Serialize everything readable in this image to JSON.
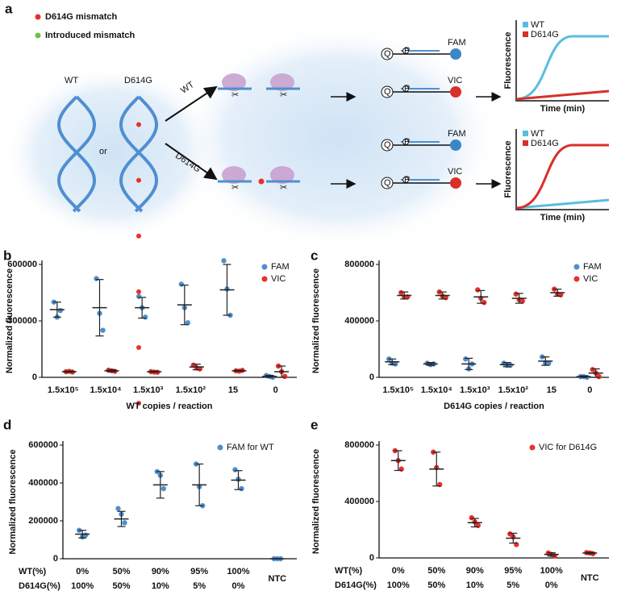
{
  "panel_a": {
    "label": "a",
    "legend": [
      "D614G mismatch",
      "Introduced mismatch"
    ],
    "strands": [
      "WT",
      "or",
      "D614G"
    ],
    "arrows": [
      "WT",
      "D614G"
    ],
    "probes": [
      "FAM",
      "VIC"
    ],
    "quencher": "Q",
    "phosphate": "P",
    "plot_legend": [
      "WT",
      "D614G"
    ],
    "plot_y_label": "Fluorescence",
    "plot_x_label": "Time (min)"
  },
  "chart_data": [
    {
      "type": "dot",
      "panel": "b",
      "y_label": "Normalized fluorescence",
      "x_label": "WT copies / reaction",
      "categories": [
        "1.5x10⁵",
        "1.5x10⁴",
        "1.5x10³",
        "1.5x10²",
        "15",
        "0"
      ],
      "ylim": [
        0,
        600000
      ],
      "yticks": [
        0,
        300000,
        600000
      ],
      "legend": "upper right",
      "series": [
        {
          "name": "FAM",
          "color": "#4f8fd0",
          "values": [
            [
              400000,
              320000,
              355000
            ],
            [
              525000,
              340000,
              250000
            ],
            [
              430000,
              370000,
              320000
            ],
            [
              495000,
              370000,
              290000
            ],
            [
              620000,
              470000,
              330000
            ],
            [
              10000,
              5000,
              0
            ]
          ],
          "mean": [
            360000,
            370000,
            370000,
            385000,
            465000,
            5000
          ],
          "sd": [
            40000,
            150000,
            55000,
            105000,
            135000,
            5000
          ]
        },
        {
          "name": "VIC",
          "color": "#e8312a",
          "values": [
            [
              30000,
              32000,
              28000
            ],
            [
              38000,
              35000,
              32000
            ],
            [
              30000,
              28000,
              27000
            ],
            [
              65000,
              50000,
              45000
            ],
            [
              35000,
              33000,
              37000
            ],
            [
              60000,
              30000,
              5000
            ]
          ],
          "mean": [
            30000,
            35000,
            30000,
            55000,
            35000,
            30000
          ],
          "sd": [
            3000,
            5000,
            3000,
            15000,
            3000,
            30000
          ]
        }
      ]
    },
    {
      "type": "dot",
      "panel": "c",
      "y_label": "Normalized fluorescence",
      "x_label": "D614G copies / reaction",
      "categories": [
        "1.5x10⁵",
        "1.5x10⁴",
        "1.5x10³",
        "1.5x10²",
        "15",
        "0"
      ],
      "ylim": [
        0,
        800000
      ],
      "yticks": [
        0,
        400000,
        800000
      ],
      "legend": "upper right",
      "series": [
        {
          "name": "FAM",
          "color": "#4f8fd0",
          "values": [
            [
              130000,
              100000,
              95000
            ],
            [
              100000,
              90000,
              95000
            ],
            [
              130000,
              60000,
              95000
            ],
            [
              100000,
              85000,
              85000
            ],
            [
              145000,
              100000,
              100000
            ],
            [
              5000,
              5000,
              0
            ]
          ],
          "mean": [
            110000,
            95000,
            95000,
            90000,
            115000,
            5000
          ],
          "sd": [
            20000,
            10000,
            40000,
            15000,
            30000,
            5000
          ]
        },
        {
          "name": "VIC",
          "color": "#e8312a",
          "values": [
            [
              600000,
              570000,
              570000
            ],
            [
              605000,
              575000,
              565000
            ],
            [
              620000,
              560000,
              530000
            ],
            [
              590000,
              550000,
              540000
            ],
            [
              625000,
              590000,
              585000
            ],
            [
              55000,
              30000,
              5000
            ]
          ],
          "mean": [
            580000,
            580000,
            570000,
            560000,
            600000,
            30000
          ],
          "sd": [
            25000,
            25000,
            45000,
            35000,
            25000,
            30000
          ]
        }
      ]
    },
    {
      "type": "dot",
      "panel": "d",
      "y_label": "Normalized fluorescence",
      "row_labels": [
        "WT(%)",
        "D614G(%)"
      ],
      "categories": [
        "0%",
        "50%",
        "90%",
        "95%",
        "100%",
        "NTC"
      ],
      "categories2": [
        "100%",
        "50%",
        "10%",
        "5%",
        "0%",
        null
      ],
      "ylim": [
        0,
        600000
      ],
      "yticks": [
        0,
        200000,
        400000,
        600000
      ],
      "legend": "upper right",
      "series": [
        {
          "name": "FAM for WT",
          "color": "#4f8fd0",
          "values": [
            [
              150000,
              115000,
              125000
            ],
            [
              265000,
              235000,
              190000
            ],
            [
              460000,
              440000,
              370000
            ],
            [
              500000,
              380000,
              280000
            ],
            [
              470000,
              420000,
              370000
            ],
            [
              0,
              0,
              0
            ]
          ],
          "mean": [
            130000,
            210000,
            390000,
            390000,
            415000,
            0
          ],
          "sd": [
            20000,
            40000,
            70000,
            110000,
            50000,
            0
          ]
        }
      ]
    },
    {
      "type": "dot",
      "panel": "e",
      "y_label": "Normalized fluorescence",
      "row_labels": [
        "WT(%)",
        "D614G(%)"
      ],
      "categories": [
        "0%",
        "50%",
        "90%",
        "95%",
        "100%",
        "NTC"
      ],
      "categories2": [
        "100%",
        "50%",
        "10%",
        "5%",
        "0%",
        null
      ],
      "ylim": [
        0,
        800000
      ],
      "yticks": [
        0,
        400000,
        800000
      ],
      "legend": "upper right",
      "series": [
        {
          "name": "VIC for D614G",
          "color": "#e8312a",
          "values": [
            [
              760000,
              690000,
              630000
            ],
            [
              750000,
              640000,
              520000
            ],
            [
              285000,
              255000,
              230000
            ],
            [
              170000,
              150000,
              95000
            ],
            [
              35000,
              25000,
              15000
            ],
            [
              38000,
              35000,
              30000
            ]
          ],
          "mean": [
            690000,
            630000,
            250000,
            140000,
            25000,
            35000
          ],
          "sd": [
            70000,
            120000,
            30000,
            35000,
            12000,
            5000
          ]
        }
      ]
    }
  ]
}
